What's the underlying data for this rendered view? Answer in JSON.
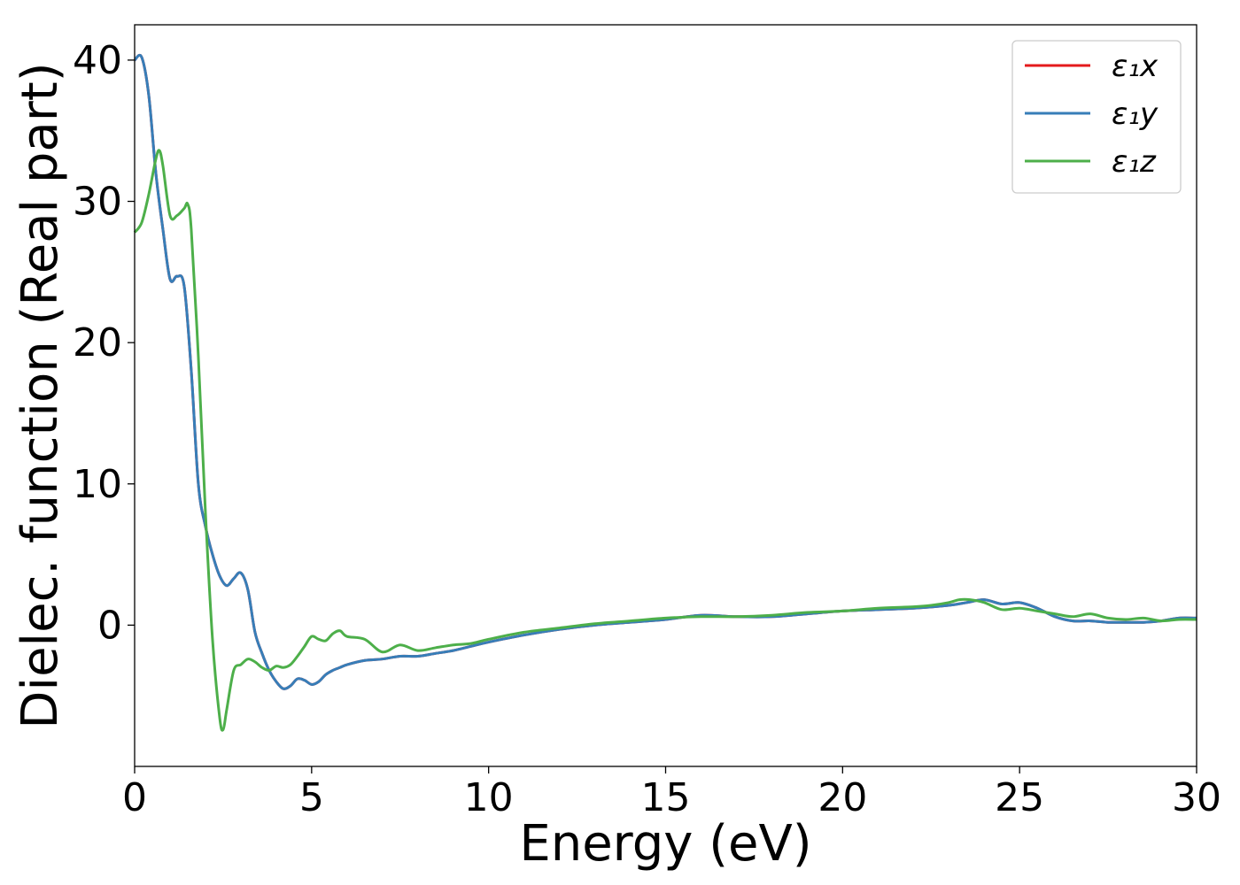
{
  "chart_data": {
    "type": "line",
    "title": "",
    "xlabel": "Energy (eV)",
    "ylabel": "Dielec. function (Real part)",
    "xlim": [
      0,
      30
    ],
    "ylim": [
      -10,
      42.5
    ],
    "xticks": [
      "0",
      "5",
      "10",
      "15",
      "20",
      "25",
      "30"
    ],
    "yticks": [
      "0",
      "10",
      "20",
      "30",
      "40"
    ],
    "grid": false,
    "legend_position": "top-right",
    "series": [
      {
        "name": "ε₁x",
        "color": "#e41a1c",
        "x": [
          0,
          0.2,
          0.4,
          0.6,
          0.8,
          1.0,
          1.2,
          1.4,
          1.6,
          1.8,
          2.0,
          2.2,
          2.4,
          2.6,
          2.8,
          3.0,
          3.2,
          3.4,
          3.6,
          3.8,
          4.0,
          4.2,
          4.4,
          4.6,
          4.8,
          5.0,
          5.2,
          5.4,
          5.6,
          5.8,
          6.0,
          6.5,
          7.0,
          7.5,
          8.0,
          8.5,
          9.0,
          9.5,
          10,
          11,
          12,
          13,
          14,
          15,
          16,
          17,
          18,
          19,
          20,
          21,
          22,
          23,
          23.5,
          24,
          24.5,
          25,
          25.5,
          26,
          26.5,
          27,
          27.5,
          28,
          28.5,
          29,
          29.5,
          30
        ],
        "values": [
          40.0,
          40.2,
          37.5,
          32.0,
          28.0,
          24.5,
          24.7,
          24.0,
          18.0,
          10.0,
          7.0,
          5.0,
          3.5,
          2.8,
          3.3,
          3.7,
          2.5,
          -0.5,
          -2.0,
          -3.2,
          -4.0,
          -4.5,
          -4.3,
          -3.8,
          -3.9,
          -4.2,
          -4.0,
          -3.5,
          -3.2,
          -3.0,
          -2.8,
          -2.5,
          -2.4,
          -2.2,
          -2.2,
          -2.0,
          -1.8,
          -1.5,
          -1.2,
          -0.7,
          -0.3,
          0.0,
          0.2,
          0.4,
          0.7,
          0.6,
          0.6,
          0.8,
          1.0,
          1.1,
          1.2,
          1.4,
          1.6,
          1.8,
          1.5,
          1.6,
          1.2,
          0.6,
          0.3,
          0.3,
          0.2,
          0.2,
          0.2,
          0.3,
          0.5,
          0.5
        ]
      },
      {
        "name": "ε₁y",
        "color": "#377eb8",
        "x": [
          0,
          0.2,
          0.4,
          0.6,
          0.8,
          1.0,
          1.2,
          1.4,
          1.6,
          1.8,
          2.0,
          2.2,
          2.4,
          2.6,
          2.8,
          3.0,
          3.2,
          3.4,
          3.6,
          3.8,
          4.0,
          4.2,
          4.4,
          4.6,
          4.8,
          5.0,
          5.2,
          5.4,
          5.6,
          5.8,
          6.0,
          6.5,
          7.0,
          7.5,
          8.0,
          8.5,
          9.0,
          9.5,
          10,
          11,
          12,
          13,
          14,
          15,
          16,
          17,
          18,
          19,
          20,
          21,
          22,
          23,
          23.5,
          24,
          24.5,
          25,
          25.5,
          26,
          26.5,
          27,
          27.5,
          28,
          28.5,
          29,
          29.5,
          30
        ],
        "values": [
          40.0,
          40.2,
          37.5,
          32.0,
          28.0,
          24.5,
          24.7,
          24.0,
          18.0,
          10.0,
          7.0,
          5.0,
          3.5,
          2.8,
          3.3,
          3.7,
          2.5,
          -0.5,
          -2.0,
          -3.2,
          -4.0,
          -4.5,
          -4.3,
          -3.8,
          -3.9,
          -4.2,
          -4.0,
          -3.5,
          -3.2,
          -3.0,
          -2.8,
          -2.5,
          -2.4,
          -2.2,
          -2.2,
          -2.0,
          -1.8,
          -1.5,
          -1.2,
          -0.7,
          -0.3,
          0.0,
          0.2,
          0.4,
          0.7,
          0.6,
          0.6,
          0.8,
          1.0,
          1.1,
          1.2,
          1.4,
          1.6,
          1.8,
          1.5,
          1.6,
          1.2,
          0.6,
          0.3,
          0.3,
          0.2,
          0.2,
          0.2,
          0.3,
          0.5,
          0.5
        ]
      },
      {
        "name": "ε₁z",
        "color": "#4daf4a",
        "x": [
          0,
          0.2,
          0.4,
          0.6,
          0.7,
          0.8,
          1.0,
          1.2,
          1.4,
          1.5,
          1.6,
          1.8,
          2.0,
          2.2,
          2.4,
          2.5,
          2.6,
          2.8,
          3.0,
          3.2,
          3.4,
          3.6,
          3.8,
          4.0,
          4.2,
          4.4,
          4.6,
          4.8,
          5.0,
          5.2,
          5.4,
          5.6,
          5.8,
          6.0,
          6.5,
          7.0,
          7.5,
          8.0,
          8.5,
          9.0,
          9.5,
          10,
          11,
          12,
          13,
          14,
          15,
          16,
          17,
          18,
          19,
          20,
          21,
          22,
          22.5,
          23,
          23.3,
          23.6,
          24,
          24.5,
          25,
          25.5,
          26,
          26.5,
          27,
          27.5,
          28,
          28.5,
          29,
          29.5,
          30
        ],
        "values": [
          27.8,
          28.5,
          30.5,
          33.0,
          33.6,
          32.5,
          29.0,
          29.0,
          29.5,
          29.8,
          28.0,
          19.0,
          8.0,
          -1.0,
          -6.5,
          -7.4,
          -6.0,
          -3.2,
          -2.8,
          -2.4,
          -2.6,
          -3.0,
          -3.2,
          -2.9,
          -3.0,
          -2.8,
          -2.2,
          -1.5,
          -0.8,
          -1.0,
          -1.1,
          -0.6,
          -0.4,
          -0.8,
          -1.0,
          -1.9,
          -1.4,
          -1.8,
          -1.6,
          -1.4,
          -1.3,
          -1.0,
          -0.5,
          -0.2,
          0.1,
          0.3,
          0.5,
          0.6,
          0.6,
          0.7,
          0.9,
          1.0,
          1.2,
          1.3,
          1.4,
          1.6,
          1.8,
          1.8,
          1.6,
          1.1,
          1.2,
          1.0,
          0.8,
          0.6,
          0.8,
          0.5,
          0.4,
          0.5,
          0.3,
          0.4,
          0.4
        ]
      }
    ]
  }
}
